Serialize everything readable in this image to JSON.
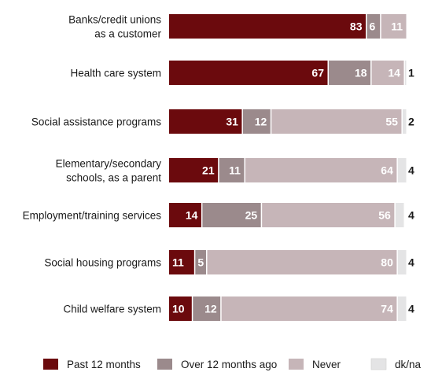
{
  "chart_data": {
    "type": "bar",
    "orientation": "horizontal",
    "stacked": true,
    "title": "",
    "xlabel": "",
    "ylabel": "",
    "xlim": [
      0,
      100
    ],
    "grid": false,
    "legend_position": "bottom",
    "categories": [
      [
        "Banks/credit unions",
        "as a customer"
      ],
      [
        "Health care system"
      ],
      [
        "Social assistance programs"
      ],
      [
        "Elementary/secondary",
        "schools, as a parent"
      ],
      [
        "Employment/training services"
      ],
      [
        "Social housing programs"
      ],
      [
        "Child welfare system"
      ]
    ],
    "series": [
      {
        "name": "Past 12 months",
        "color": "#6b0a0d",
        "label_color": "#ffffff",
        "values": [
          83,
          67,
          31,
          21,
          14,
          11,
          10
        ]
      },
      {
        "name": "Over 12 months ago",
        "color": "#9b8a8c",
        "label_color": "#ffffff",
        "values": [
          6,
          18,
          12,
          11,
          25,
          5,
          12
        ]
      },
      {
        "name": "Never",
        "color": "#c6b5b8",
        "label_color": "#ffffff",
        "values": [
          11,
          14,
          55,
          64,
          56,
          80,
          74
        ]
      },
      {
        "name": "dk/na",
        "color": "#e4e4e5",
        "label_color": "#1a1a1a",
        "values": [
          0,
          1,
          2,
          4,
          4,
          4,
          4
        ]
      }
    ],
    "value_labels": [
      [
        "83",
        "6",
        "11",
        ""
      ],
      [
        "67",
        "18",
        "14",
        "1"
      ],
      [
        "31",
        "12",
        "55",
        "2"
      ],
      [
        "21",
        "11",
        "64",
        "4"
      ],
      [
        "14",
        "25",
        "56",
        "4"
      ],
      [
        "11",
        "5",
        "80",
        "4"
      ],
      [
        "10",
        "12",
        "74",
        "4"
      ]
    ]
  }
}
